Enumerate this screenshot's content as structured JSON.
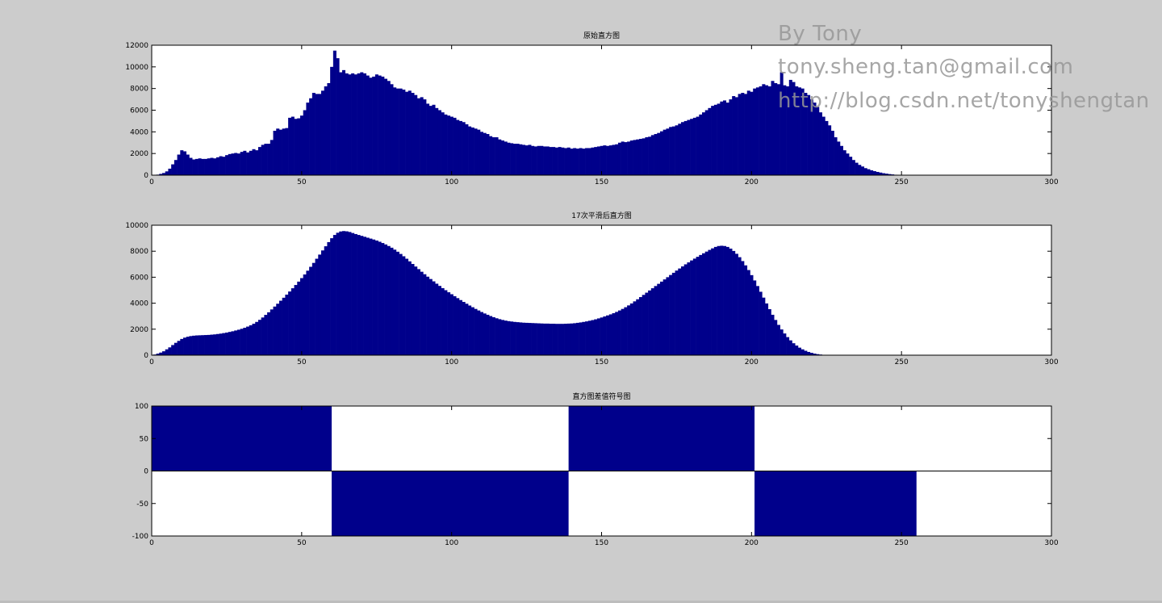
{
  "figure": {
    "background": "#cccccc",
    "bar_color": "#00008b",
    "axes_bg": "#ffffff"
  },
  "watermark": {
    "line1": "By Tony",
    "line2": "tony.sheng.tan@gmail.com",
    "line3": "http://blog.csdn.net/tonyshengtan"
  },
  "chart_data": [
    {
      "type": "bar",
      "title": "原始直方图",
      "xlim": [
        0,
        300
      ],
      "ylim": [
        0,
        12000
      ],
      "xticks": [
        0,
        50,
        100,
        150,
        200,
        250,
        300
      ],
      "yticks": [
        0,
        2000,
        4000,
        6000,
        8000,
        10000,
        12000
      ],
      "x_start": 0,
      "x_step": 1,
      "values": [
        0,
        0,
        50,
        120,
        200,
        350,
        600,
        1000,
        1400,
        1900,
        2300,
        2200,
        1900,
        1600,
        1450,
        1500,
        1550,
        1500,
        1500,
        1550,
        1600,
        1550,
        1650,
        1750,
        1700,
        1850,
        1950,
        2000,
        2050,
        2000,
        2150,
        2250,
        2100,
        2250,
        2400,
        2300,
        2600,
        2800,
        2900,
        2900,
        3250,
        4100,
        4300,
        4200,
        4300,
        4350,
        5300,
        5400,
        5200,
        5250,
        5500,
        6000,
        6700,
        7100,
        7600,
        7500,
        7500,
        7800,
        8200,
        8500,
        10000,
        11500,
        10800,
        9500,
        9700,
        9400,
        9300,
        9400,
        9300,
        9400,
        9500,
        9400,
        9200,
        9000,
        9100,
        9300,
        9200,
        9100,
        8900,
        8700,
        8400,
        8100,
        8000,
        8000,
        7900,
        7700,
        7800,
        7600,
        7400,
        7100,
        7200,
        7000,
        6600,
        6400,
        6500,
        6200,
        6000,
        5800,
        5600,
        5500,
        5400,
        5300,
        5100,
        5000,
        4900,
        4700,
        4500,
        4400,
        4300,
        4200,
        4000,
        3900,
        3800,
        3600,
        3500,
        3500,
        3300,
        3200,
        3100,
        3000,
        2950,
        2900,
        2900,
        2850,
        2800,
        2750,
        2800,
        2700,
        2650,
        2700,
        2700,
        2650,
        2650,
        2600,
        2600,
        2550,
        2600,
        2550,
        2500,
        2550,
        2450,
        2500,
        2450,
        2500,
        2450,
        2500,
        2500,
        2550,
        2600,
        2650,
        2700,
        2750,
        2700,
        2750,
        2800,
        2850,
        3000,
        3100,
        3050,
        3100,
        3200,
        3250,
        3300,
        3350,
        3400,
        3500,
        3550,
        3700,
        3800,
        3900,
        4050,
        4200,
        4300,
        4450,
        4500,
        4600,
        4750,
        4900,
        5000,
        5100,
        5200,
        5300,
        5400,
        5600,
        5800,
        6000,
        6200,
        6400,
        6500,
        6600,
        6800,
        6900,
        6700,
        7000,
        7300,
        7200,
        7500,
        7600,
        7500,
        7800,
        7700,
        8000,
        8100,
        8200,
        8400,
        8300,
        8200,
        8700,
        8500,
        8400,
        9500,
        8300,
        8200,
        8800,
        8600,
        8200,
        8100,
        8000,
        7600,
        7400,
        7000,
        6700,
        6300,
        5800,
        5400,
        5000,
        4600,
        4100,
        3500,
        3100,
        2700,
        2300,
        2000,
        1700,
        1400,
        1150,
        950,
        800,
        650,
        550,
        450,
        370,
        300,
        240,
        180,
        140,
        100,
        70,
        40,
        20,
        10,
        5,
        3,
        0,
        0
      ]
    },
    {
      "type": "bar",
      "title": "17次平滑后直方图",
      "xlim": [
        0,
        300
      ],
      "ylim": [
        0,
        10000
      ],
      "xticks": [
        0,
        50,
        100,
        150,
        200,
        250,
        300
      ],
      "yticks": [
        0,
        2000,
        4000,
        6000,
        8000,
        10000
      ],
      "x_start": 0,
      "x_step": 1,
      "values": [
        0,
        50,
        120,
        200,
        300,
        450,
        600,
        780,
        950,
        1100,
        1250,
        1350,
        1420,
        1470,
        1500,
        1520,
        1530,
        1540,
        1550,
        1560,
        1580,
        1600,
        1630,
        1660,
        1700,
        1740,
        1790,
        1840,
        1900,
        1960,
        2030,
        2110,
        2200,
        2300,
        2420,
        2560,
        2720,
        2900,
        3100,
        3300,
        3520,
        3740,
        3960,
        4190,
        4420,
        4660,
        4900,
        5150,
        5400,
        5660,
        5930,
        6210,
        6500,
        6800,
        7100,
        7420,
        7740,
        8060,
        8380,
        8700,
        9000,
        9250,
        9420,
        9520,
        9550,
        9530,
        9480,
        9400,
        9320,
        9250,
        9180,
        9110,
        9040,
        8970,
        8900,
        8820,
        8730,
        8630,
        8520,
        8400,
        8270,
        8120,
        7960,
        7790,
        7610,
        7420,
        7220,
        7020,
        6820,
        6620,
        6420,
        6230,
        6040,
        5860,
        5680,
        5500,
        5330,
        5160,
        5000,
        4840,
        4690,
        4540,
        4390,
        4240,
        4100,
        3960,
        3820,
        3690,
        3560,
        3440,
        3320,
        3210,
        3110,
        3010,
        2920,
        2840,
        2770,
        2710,
        2660,
        2620,
        2590,
        2560,
        2540,
        2520,
        2500,
        2490,
        2480,
        2470,
        2460,
        2450,
        2440,
        2430,
        2430,
        2420,
        2420,
        2410,
        2410,
        2410,
        2420,
        2430,
        2440,
        2460,
        2490,
        2520,
        2560,
        2600,
        2650,
        2700,
        2760,
        2830,
        2900,
        2980,
        3060,
        3140,
        3230,
        3330,
        3440,
        3560,
        3690,
        3830,
        3980,
        4140,
        4300,
        4470,
        4640,
        4810,
        4980,
        5150,
        5320,
        5490,
        5660,
        5830,
        6000,
        6170,
        6340,
        6510,
        6670,
        6830,
        6990,
        7140,
        7290,
        7430,
        7570,
        7710,
        7840,
        7970,
        8100,
        8220,
        8330,
        8400,
        8420,
        8400,
        8330,
        8200,
        8020,
        7800,
        7540,
        7240,
        6910,
        6550,
        6160,
        5750,
        5320,
        4880,
        4430,
        3980,
        3540,
        3110,
        2710,
        2330,
        1980,
        1670,
        1390,
        1140,
        920,
        740,
        580,
        450,
        340,
        250,
        180,
        120,
        80,
        50,
        30,
        15,
        8,
        3,
        0
      ]
    },
    {
      "type": "bar",
      "title": "直方图差值符号图",
      "xlim": [
        0,
        300
      ],
      "ylim": [
        -100,
        100
      ],
      "xticks": [
        0,
        50,
        100,
        150,
        200,
        250,
        300
      ],
      "yticks": [
        -100,
        -50,
        0,
        50,
        100
      ],
      "segments": [
        {
          "from": 0,
          "to": 60,
          "value": 100
        },
        {
          "from": 60,
          "to": 139,
          "value": -100
        },
        {
          "from": 139,
          "to": 201,
          "value": 100
        },
        {
          "from": 201,
          "to": 255,
          "value": -100
        }
      ]
    }
  ]
}
